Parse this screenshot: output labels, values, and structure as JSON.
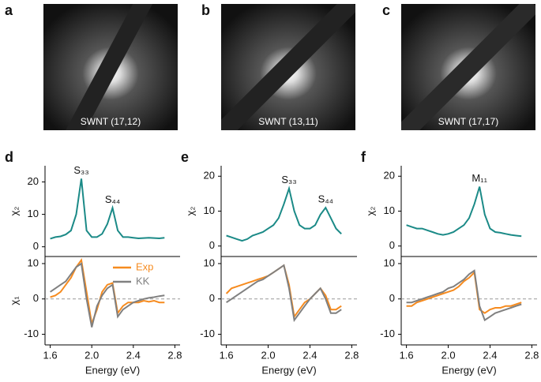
{
  "images": [
    {
      "label": "a",
      "caption": "SWNT (17,12)"
    },
    {
      "label": "b",
      "caption": "SWNT (13,11)"
    },
    {
      "label": "c",
      "caption": "SWNT (17,17)"
    }
  ],
  "chart_data": [
    {
      "type": "line",
      "panel_label": "d",
      "ylabel": "χ₂",
      "x": [
        1.6,
        1.65,
        1.7,
        1.75,
        1.8,
        1.85,
        1.9,
        1.95,
        2.0,
        2.05,
        2.1,
        2.15,
        2.2,
        2.25,
        2.3,
        2.35,
        2.4,
        2.45,
        2.5,
        2.55,
        2.6,
        2.65,
        2.7
      ],
      "xlim": [
        1.55,
        2.85
      ],
      "ylim": [
        -3,
        25
      ],
      "yticks": [
        0,
        10,
        20
      ],
      "series": [
        {
          "color": "#1b8a87",
          "values": [
            2.5,
            3,
            3.2,
            3.8,
            5,
            10,
            21,
            5,
            3,
            3,
            4,
            7,
            12,
            5,
            3,
            3,
            2.8,
            2.6,
            2.7,
            2.8,
            2.7,
            2.6,
            2.8
          ]
        }
      ],
      "annotations": [
        {
          "text": "S₃₃",
          "x": 1.9
        },
        {
          "text": "S₄₄",
          "x": 2.2
        }
      ]
    },
    {
      "type": "line",
      "ylabel": "χ₁",
      "xlabel": "Energy (eV)",
      "x": [
        1.6,
        1.65,
        1.7,
        1.75,
        1.8,
        1.85,
        1.9,
        1.95,
        2.0,
        2.05,
        2.1,
        2.15,
        2.2,
        2.25,
        2.3,
        2.35,
        2.4,
        2.45,
        2.5,
        2.55,
        2.6,
        2.65,
        2.7
      ],
      "xlim": [
        1.55,
        2.85
      ],
      "xticks": [
        1.6,
        {
          "value": 2,
          "label": "2.0"
        },
        2.4,
        2.8
      ],
      "ylim": [
        -13,
        12
      ],
      "yticks": [
        -10,
        0,
        10
      ],
      "zero_line": true,
      "legend": true,
      "series": [
        {
          "name": "Exp",
          "color": "#f68b1f",
          "values": [
            0.5,
            1,
            2,
            4,
            6,
            9,
            11,
            2,
            -7,
            -3,
            2,
            4,
            4.5,
            -4,
            -2,
            -1,
            -1,
            -1,
            -0.5,
            -0.8,
            -0.5,
            -1,
            -1
          ]
        },
        {
          "name": "KK",
          "color": "#808080",
          "values": [
            2,
            3,
            4,
            5,
            7,
            9,
            10,
            0,
            -8,
            -2,
            1,
            3,
            4,
            -5,
            -3,
            -2,
            -1,
            -0.5,
            0,
            0.3,
            0.5,
            0.8,
            1
          ]
        }
      ]
    },
    {
      "type": "line",
      "panel_label": "e",
      "ylabel": "χ₂",
      "x": [
        1.6,
        1.65,
        1.7,
        1.75,
        1.8,
        1.85,
        1.9,
        1.95,
        2.0,
        2.05,
        2.1,
        2.15,
        2.2,
        2.25,
        2.3,
        2.35,
        2.4,
        2.45,
        2.5,
        2.55,
        2.6,
        2.65,
        2.7
      ],
      "xlim": [
        1.55,
        2.85
      ],
      "ylim": [
        -3,
        23
      ],
      "yticks": [
        0,
        10,
        20
      ],
      "series": [
        {
          "color": "#1b8a87",
          "values": [
            3,
            2.5,
            2,
            1.5,
            2,
            3,
            3.5,
            4,
            5,
            6,
            8,
            12,
            16.5,
            10,
            6,
            5,
            5,
            6,
            9,
            11,
            8,
            5,
            3.5
          ]
        }
      ],
      "annotations": [
        {
          "text": "S₃₃",
          "x": 2.2
        },
        {
          "text": "S₄₄",
          "x": 2.55
        }
      ]
    },
    {
      "type": "line",
      "xlabel": "Energy (eV)",
      "x": [
        1.6,
        1.65,
        1.7,
        1.75,
        1.8,
        1.85,
        1.9,
        1.95,
        2.0,
        2.05,
        2.1,
        2.15,
        2.2,
        2.25,
        2.3,
        2.35,
        2.4,
        2.45,
        2.5,
        2.55,
        2.6,
        2.65,
        2.7
      ],
      "xlim": [
        1.55,
        2.85
      ],
      "xticks": [
        1.6,
        {
          "value": 2,
          "label": "2.0"
        },
        2.4,
        2.8
      ],
      "ylim": [
        -13,
        12
      ],
      "yticks": [
        -10,
        0,
        10
      ],
      "zero_line": true,
      "series": [
        {
          "color": "#f68b1f",
          "values": [
            1.5,
            3,
            3.5,
            4,
            4.5,
            5,
            5.5,
            6,
            6.5,
            7.5,
            8.5,
            9.5,
            4,
            -5,
            -3,
            -1,
            0,
            1.5,
            3,
            1,
            -3,
            -3,
            -2
          ]
        },
        {
          "color": "#808080",
          "values": [
            -1,
            0,
            1,
            2,
            3,
            4,
            5,
            5.5,
            6.5,
            7.5,
            8.5,
            9.5,
            3,
            -6,
            -4,
            -2,
            0,
            1.5,
            3,
            0,
            -4,
            -4,
            -3
          ]
        }
      ]
    },
    {
      "type": "line",
      "panel_label": "f",
      "ylabel": "χ₂",
      "x": [
        1.6,
        1.65,
        1.7,
        1.75,
        1.8,
        1.85,
        1.9,
        1.95,
        2.0,
        2.05,
        2.1,
        2.15,
        2.2,
        2.25,
        2.3,
        2.35,
        2.4,
        2.45,
        2.5,
        2.55,
        2.6,
        2.65,
        2.7
      ],
      "xlim": [
        1.55,
        2.85
      ],
      "ylim": [
        -3,
        23
      ],
      "yticks": [
        0,
        10,
        20
      ],
      "series": [
        {
          "color": "#1b8a87",
          "values": [
            6,
            5.5,
            5,
            5,
            4.5,
            4,
            3.5,
            3.2,
            3.5,
            4,
            5,
            6,
            8,
            12,
            17,
            9,
            5,
            4,
            3.8,
            3.5,
            3.2,
            3,
            2.8
          ]
        }
      ],
      "annotations": [
        {
          "text": "M₁₁",
          "x": 2.3
        }
      ]
    },
    {
      "type": "line",
      "xlabel": "Energy (eV)",
      "x": [
        1.6,
        1.65,
        1.7,
        1.75,
        1.8,
        1.85,
        1.9,
        1.95,
        2.0,
        2.05,
        2.1,
        2.15,
        2.2,
        2.25,
        2.3,
        2.35,
        2.4,
        2.45,
        2.5,
        2.55,
        2.6,
        2.65,
        2.7
      ],
      "xlim": [
        1.55,
        2.85
      ],
      "xticks": [
        1.6,
        {
          "value": 2,
          "label": "2.0"
        },
        2.4,
        2.8
      ],
      "ylim": [
        -13,
        12
      ],
      "yticks": [
        -10,
        0,
        10
      ],
      "zero_line": true,
      "series": [
        {
          "color": "#f68b1f",
          "values": [
            -2,
            -2,
            -1,
            -0.5,
            0,
            0.5,
            1,
            1.5,
            2,
            2.5,
            3.5,
            5,
            6,
            7.5,
            -3,
            -4,
            -3,
            -2.5,
            -2.5,
            -2,
            -2,
            -1.5,
            -1
          ]
        },
        {
          "color": "#808080",
          "values": [
            -1,
            -1,
            -0.5,
            0,
            0.5,
            1,
            1.5,
            2,
            3,
            3.5,
            4.5,
            5.5,
            7,
            8,
            -2,
            -6,
            -5,
            -4,
            -3.5,
            -3,
            -2.5,
            -2,
            -1.5
          ]
        }
      ]
    }
  ]
}
